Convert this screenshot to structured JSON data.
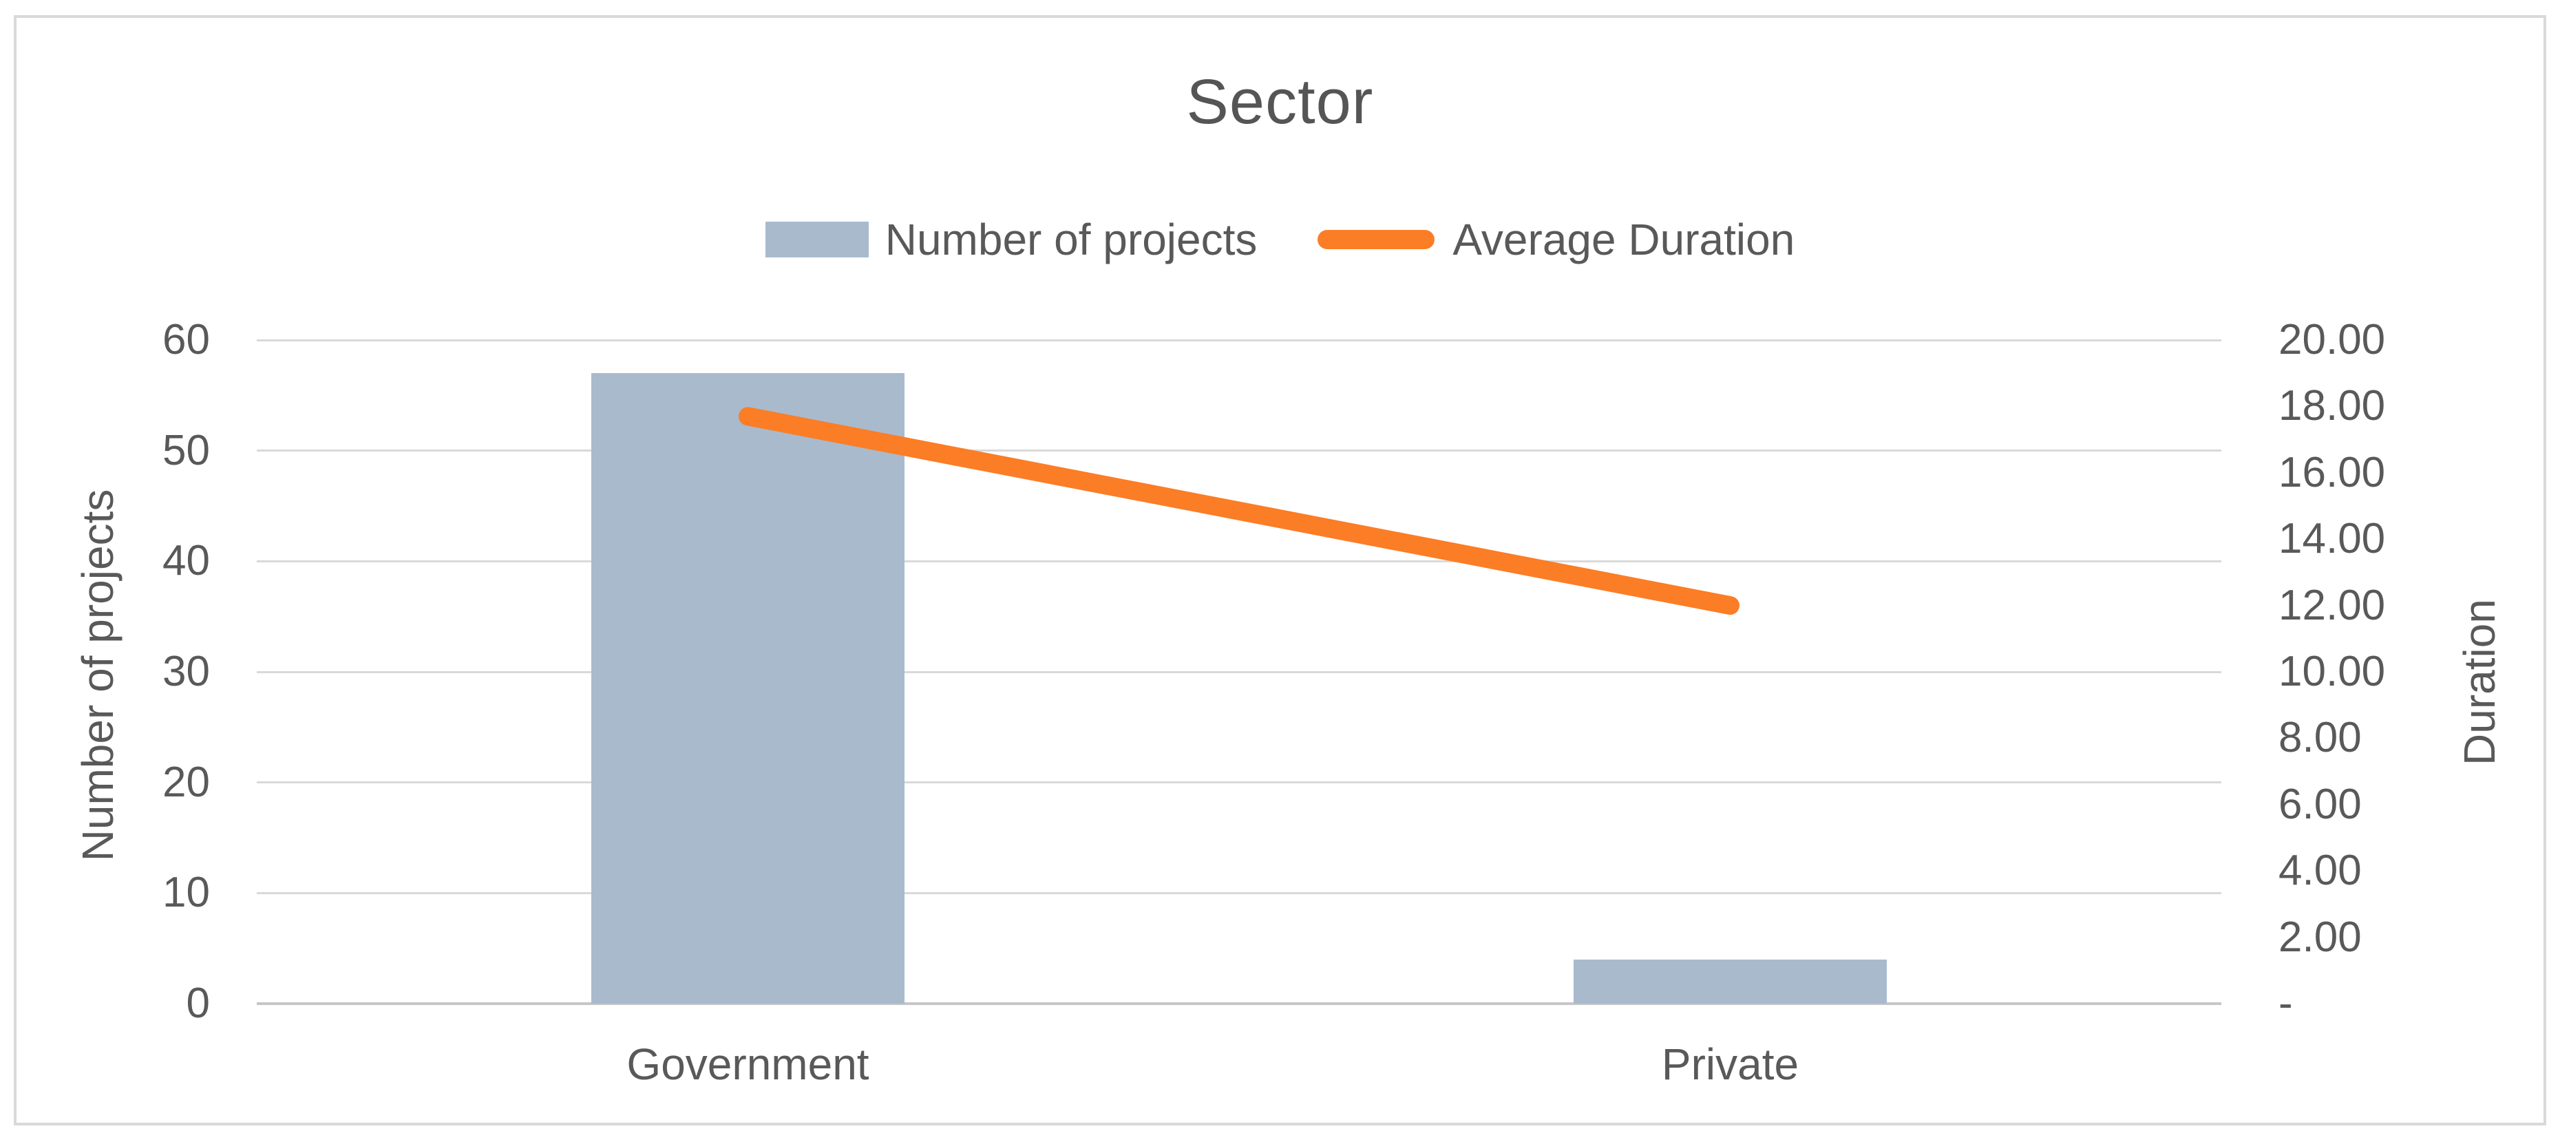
{
  "chart_data": {
    "type": "bar+line-combo",
    "title": "Sector",
    "categories": [
      "Government",
      "Private"
    ],
    "series": [
      {
        "name": "Number of projects",
        "type": "bar",
        "axis": "left",
        "values": [
          57,
          4
        ],
        "color": "#a9bacd"
      },
      {
        "name": "Average Duration",
        "type": "line",
        "axis": "right",
        "values": [
          17.7,
          12.0
        ],
        "color": "#fb7d26"
      }
    ],
    "left_axis": {
      "title": "Number of projects",
      "min": 0,
      "max": 60,
      "step": 10,
      "tick_labels": [
        "60",
        "50",
        "40",
        "30",
        "20",
        "10",
        "0"
      ]
    },
    "right_axis": {
      "title": "Duration",
      "min": 0,
      "max": 20,
      "step": 2,
      "tick_labels": [
        "20.00",
        "18.00",
        "16.00",
        "14.00",
        "12.00",
        "10.00",
        "8.00",
        "6.00",
        "4.00",
        "2.00",
        "-"
      ]
    },
    "legend": {
      "position": "top",
      "entries": [
        "Number of projects",
        "Average Duration"
      ]
    },
    "grid": true,
    "colors": {
      "bar_fill": "#a9bacd",
      "line_stroke": "#fb7d26",
      "gridline": "#d9d9d9",
      "axis_line": "#c6c6c6",
      "text": "#595959",
      "frame_border": "#d9d9d9",
      "background": "#ffffff"
    }
  }
}
